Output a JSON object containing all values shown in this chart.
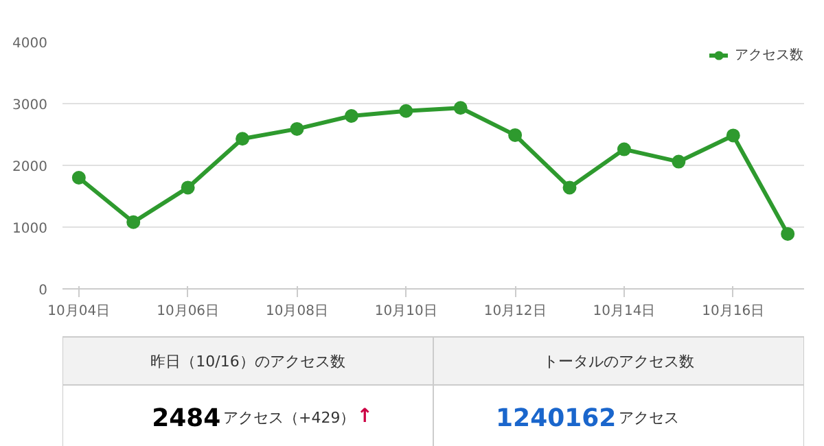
{
  "chart_data": {
    "type": "line",
    "categories": [
      "10月04日",
      null,
      "10月06日",
      null,
      "10月08日",
      null,
      "10月10日",
      null,
      "10月12日",
      null,
      "10月14日",
      null,
      "10月16日",
      null
    ],
    "series": [
      {
        "name": "アクセス数",
        "color": "#2e9a2e",
        "values": [
          1800,
          1080,
          1640,
          2430,
          2590,
          2800,
          2880,
          2930,
          2490,
          1640,
          2260,
          2060,
          2484,
          890
        ]
      }
    ],
    "ylim": [
      0,
      4000
    ],
    "yticks": [
      0,
      1000,
      2000,
      3000,
      4000
    ],
    "grid": "y",
    "legend": "top right",
    "marker": "circle",
    "line_style": "solid",
    "annotations": [
      "昨日（10/16）のアクセス数",
      "トータルのアクセス数",
      "2484",
      "アクセス（+429）",
      "↑",
      "1240162",
      "アクセス"
    ]
  }
}
